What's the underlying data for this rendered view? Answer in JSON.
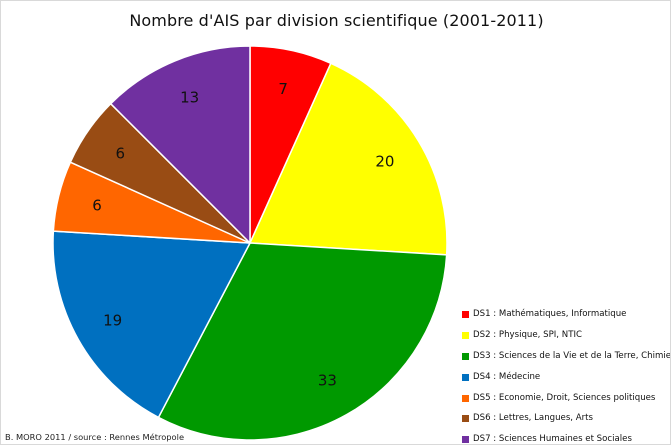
{
  "chart_data": {
    "type": "pie",
    "title": "Nombre d'AIS par division scientifique (2001-2011)",
    "categories": [
      "DS1 : Mathématiques, Informatique",
      "DS2 : Physique, SPI, NTIC",
      "DS3 : Sciences de la Vie et de la Terre, Chimie",
      "DS4 : Médecine",
      "DS5 : Economie, Droit, Sciences politiques",
      "DS6 : Lettres, Langues, Arts",
      "DS7 : Sciences Humaines et Sociales"
    ],
    "values": [
      7,
      20,
      33,
      19,
      6,
      6,
      13
    ],
    "colors": [
      "#ff0000",
      "#ffff00",
      "#009900",
      "#0070c0",
      "#ff6600",
      "#994c14",
      "#7030a0"
    ],
    "start_angle": "top",
    "direction": "clockwise",
    "data_labels": true,
    "legend_position": "bottom-right"
  },
  "source_note": "B. MORO 2011 / source : Rennes Métropole"
}
